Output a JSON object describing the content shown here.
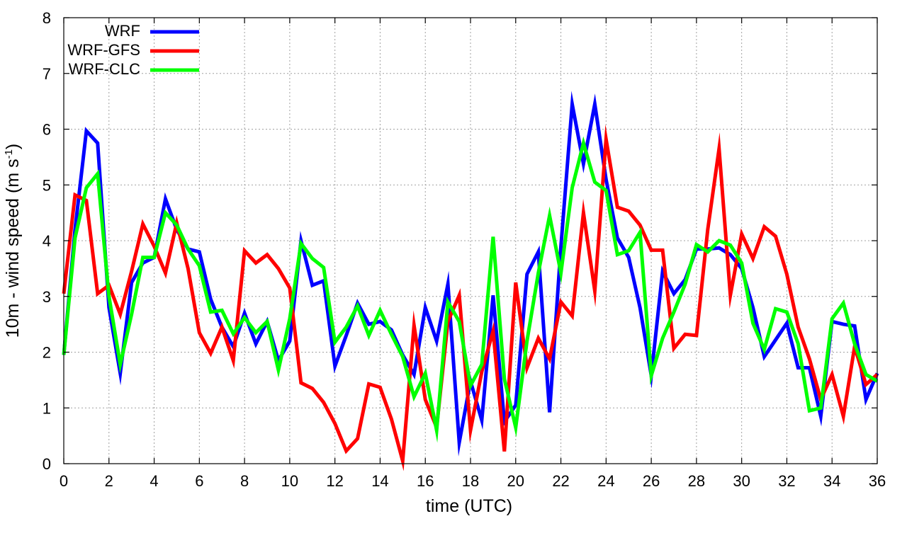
{
  "chart_data": {
    "type": "line",
    "title": "",
    "xlabel": "time (UTC)",
    "ylabel_main": "10m - wind speed  (m s",
    "ylabel_sup": "-1",
    "ylabel_close": ")",
    "xlim": [
      0,
      36
    ],
    "ylim": [
      0,
      8
    ],
    "xticks": [
      0,
      2,
      4,
      6,
      8,
      10,
      12,
      14,
      16,
      18,
      20,
      22,
      24,
      26,
      28,
      30,
      32,
      34,
      36
    ],
    "yticks": [
      0,
      1,
      2,
      3,
      4,
      5,
      6,
      7,
      8
    ],
    "grid": true,
    "legend_position": "top-left",
    "x": [
      0,
      0.5,
      1,
      1.5,
      2,
      2.5,
      3,
      3.5,
      4,
      4.5,
      5,
      5.5,
      6,
      6.5,
      7,
      7.5,
      8,
      8.5,
      9,
      9.5,
      10,
      10.5,
      11,
      11.5,
      12,
      12.5,
      13,
      13.5,
      14,
      14.5,
      15,
      15.5,
      16,
      16.5,
      17,
      17.5,
      18,
      18.5,
      19,
      19.5,
      20,
      20.5,
      21,
      21.5,
      22,
      22.5,
      23,
      23.5,
      24,
      24.5,
      25,
      25.5,
      26,
      26.5,
      27,
      27.5,
      28,
      28.5,
      29,
      29.5,
      30,
      30.5,
      31,
      31.5,
      32,
      32.5,
      33,
      33.5,
      34,
      34.5,
      35,
      35.5,
      36
    ],
    "series": [
      {
        "name": "WRF",
        "color": "#0000ff",
        "values": [
          1.95,
          4.2,
          5.97,
          5.75,
          2.8,
          1.62,
          3.25,
          3.6,
          3.7,
          4.75,
          4.2,
          3.85,
          3.8,
          2.95,
          2.45,
          2.1,
          2.7,
          2.15,
          2.55,
          1.85,
          2.2,
          4.0,
          3.2,
          3.28,
          1.75,
          2.3,
          2.88,
          2.5,
          2.55,
          2.4,
          1.95,
          1.6,
          2.8,
          2.2,
          3.22,
          0.38,
          1.48,
          0.78,
          3.02,
          0.75,
          1.05,
          3.4,
          3.8,
          0.92,
          3.9,
          6.45,
          5.38,
          6.45,
          5.1,
          4.05,
          3.7,
          2.8,
          1.58,
          3.45,
          3.05,
          3.3,
          3.85,
          3.85,
          3.87,
          3.75,
          3.5,
          2.8,
          1.92,
          2.22,
          2.52,
          1.72,
          1.72,
          0.85,
          2.55,
          2.5,
          2.47,
          1.15,
          1.62
        ]
      },
      {
        "name": "WRF-GFS",
        "color": "#ff0000",
        "values": [
          3.05,
          4.82,
          4.72,
          3.05,
          3.2,
          2.68,
          3.45,
          4.3,
          3.9,
          3.42,
          4.32,
          3.5,
          2.35,
          1.98,
          2.45,
          1.85,
          3.82,
          3.6,
          3.75,
          3.5,
          3.15,
          1.45,
          1.35,
          1.1,
          0.72,
          0.23,
          0.45,
          1.43,
          1.37,
          0.8,
          0.05,
          2.48,
          1.15,
          0.65,
          2.55,
          3.02,
          0.6,
          1.65,
          2.38,
          0.22,
          3.25,
          1.72,
          2.25,
          1.88,
          2.9,
          2.65,
          4.5,
          3.1,
          5.82,
          4.6,
          4.53,
          4.28,
          3.83,
          3.83,
          2.07,
          2.32,
          2.3,
          4.2,
          5.65,
          3.02,
          4.12,
          3.68,
          4.25,
          4.08,
          3.4,
          2.45,
          1.88,
          1.15,
          1.6,
          0.85,
          2.1,
          1.42,
          1.6
        ]
      },
      {
        "name": "WRF-CLC",
        "color": "#00ff00",
        "values": [
          1.95,
          4.05,
          4.95,
          5.2,
          3.0,
          1.78,
          2.68,
          3.7,
          3.7,
          4.5,
          4.28,
          3.85,
          3.55,
          2.72,
          2.75,
          2.33,
          2.62,
          2.35,
          2.55,
          1.68,
          2.6,
          3.95,
          3.68,
          3.52,
          2.18,
          2.45,
          2.83,
          2.3,
          2.75,
          2.32,
          1.92,
          1.2,
          1.62,
          0.6,
          2.9,
          2.55,
          1.4,
          1.78,
          4.07,
          1.52,
          0.65,
          2.2,
          3.42,
          4.45,
          3.42,
          4.95,
          5.75,
          5.05,
          4.9,
          3.75,
          3.82,
          4.15,
          1.58,
          2.25,
          2.72,
          3.22,
          3.93,
          3.8,
          4.0,
          3.92,
          3.6,
          2.52,
          2.05,
          2.78,
          2.72,
          2.15,
          0.95,
          1.0,
          2.6,
          2.88,
          2.15,
          1.6,
          1.48
        ]
      }
    ]
  }
}
